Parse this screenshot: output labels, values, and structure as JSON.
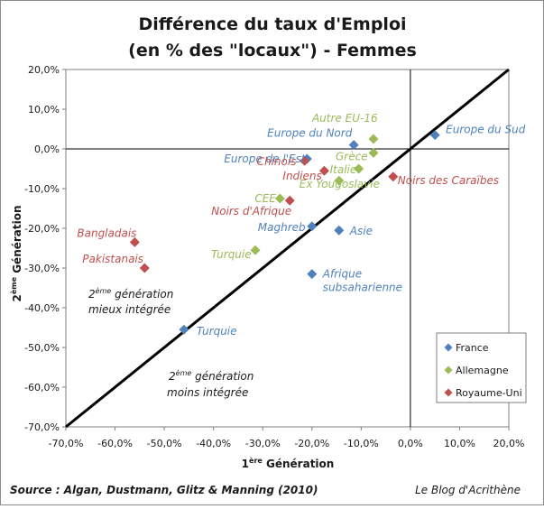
{
  "chart_data": {
    "type": "scatter",
    "title_lines": [
      "Différence du taux d'Emploi",
      "(en % des \"locaux\") - Femmes"
    ],
    "xlabel": {
      "prefix": "1",
      "sup": "ère",
      "suffix": " Génération"
    },
    "ylabel": {
      "prefix": "2",
      "sup": "ème",
      "suffix": "  Génération"
    },
    "xlim": [
      -70,
      20
    ],
    "ylim": [
      -70,
      20
    ],
    "x_ticks": [
      -70,
      -60,
      -50,
      -40,
      -30,
      -20,
      -10,
      0,
      10,
      20
    ],
    "y_ticks": [
      -70,
      -60,
      -50,
      -40,
      -30,
      -20,
      -10,
      0,
      10,
      20
    ],
    "x_tick_labels": [
      "-70,0%",
      "-60,0%",
      "-50,0%",
      "-40,0%",
      "-30,0%",
      "-20,0%",
      "-10,0%",
      "0,0%",
      "10,0%",
      "20,0%"
    ],
    "y_tick_labels": [
      "-70,0%",
      "-60,0%",
      "-50,0%",
      "-40,0%",
      "-30,0%",
      "-20,0%",
      "-10,0%",
      "0,0%",
      "10,0%",
      "20,0%"
    ],
    "legend_position": "bottom-right",
    "diagonal_line": {
      "from": [
        -70,
        -70
      ],
      "to": [
        20,
        20
      ]
    },
    "series": [
      {
        "name": "France",
        "color": "#4f81bd",
        "points": [
          {
            "label": "Europe du Nord",
            "x": -11.5,
            "y": 1.0
          },
          {
            "label": "Europe du Sud",
            "x": 5.0,
            "y": 3.5
          },
          {
            "label": "Europe de l'Est",
            "x": -21.0,
            "y": -2.5
          },
          {
            "label": "Maghreb",
            "x": -20.0,
            "y": -19.5
          },
          {
            "label": "Asie",
            "x": -14.5,
            "y": -20.5
          },
          {
            "label": "Afrique subsaharienne",
            "x": -20.0,
            "y": -31.5
          },
          {
            "label": "Turquie",
            "x": -46.0,
            "y": -45.5
          }
        ]
      },
      {
        "name": "Allemagne",
        "color": "#9bbb59",
        "points": [
          {
            "label": "Autre EU-16",
            "x": -7.5,
            "y": 2.5
          },
          {
            "label": "Grèce",
            "x": -7.5,
            "y": -1.0
          },
          {
            "label": "Italie",
            "x": -10.5,
            "y": -5.0
          },
          {
            "label": "Ex Yougoslavie",
            "x": -14.5,
            "y": -8.0
          },
          {
            "label": "CEE",
            "x": -26.5,
            "y": -12.5
          },
          {
            "label": "Turquie",
            "x": -31.5,
            "y": -25.5
          }
        ]
      },
      {
        "name": "Royaume-Uni",
        "color": "#c0504d",
        "points": [
          {
            "label": "Chinois",
            "x": -21.5,
            "y": -3.0
          },
          {
            "label": "Indiens",
            "x": -17.5,
            "y": -5.5
          },
          {
            "label": "Noirs des Caraïbes",
            "x": -3.5,
            "y": -7.0
          },
          {
            "label": "Noirs d'Afrique",
            "x": -24.5,
            "y": -13.0
          },
          {
            "label": "Bangladais",
            "x": -56.0,
            "y": -23.5
          },
          {
            "label": "Pakistanais",
            "x": -54.0,
            "y": -30.0
          }
        ]
      }
    ],
    "annotations": [
      {
        "lines": [
          {
            "prefix": "2",
            "sup": "ème",
            "suffix": " génération"
          },
          {
            "text": "mieux intégrée"
          }
        ]
      },
      {
        "lines": [
          {
            "prefix": "2",
            "sup": "ème",
            "suffix": " génération"
          },
          {
            "text": "moins intégrée"
          }
        ]
      }
    ]
  },
  "footer": {
    "source": "Source : Algan, Dustmann, Glitz & Manning (2010)",
    "blog": "Le Blog d'Acrithène"
  }
}
